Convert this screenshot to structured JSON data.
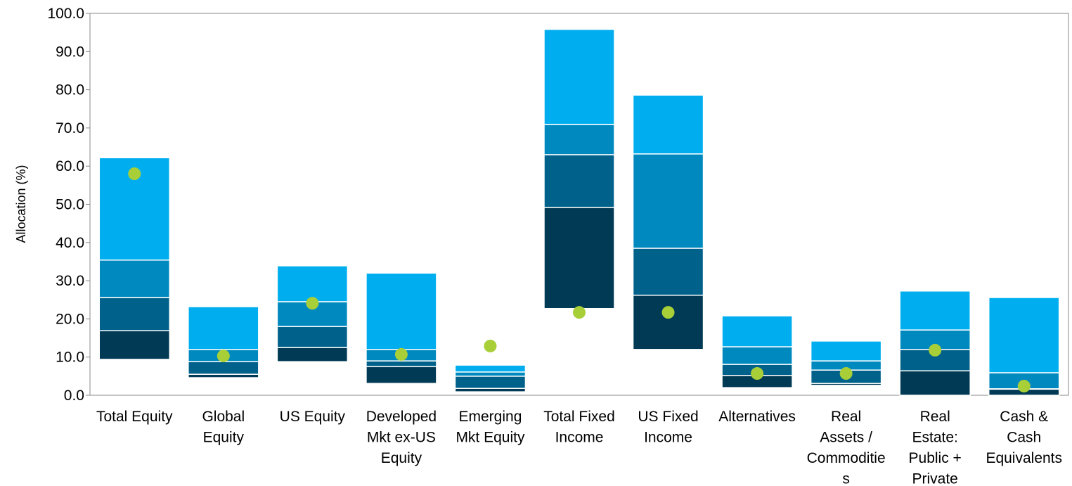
{
  "chart_data": {
    "type": "floating_range",
    "y_label": "Allocation (%)",
    "categories": [
      [
        "Total Equity"
      ],
      [
        "Global",
        "Equity"
      ],
      [
        "US Equity"
      ],
      [
        "Developed",
        "Mkt ex-US",
        "Equity"
      ],
      [
        "Emerging",
        "Mkt Equity"
      ],
      [
        "Total Fixed",
        "Income"
      ],
      [
        "US Fixed",
        "Income"
      ],
      [
        "Alternatives"
      ],
      [
        "Real",
        "Assets /",
        "Commoditie",
        "s"
      ],
      [
        "Real",
        "Estate:",
        "Public +",
        "Private"
      ],
      [
        "Cash &",
        "Cash",
        "Equivalents"
      ]
    ],
    "percentiles": [
      [
        9.4,
        4.6,
        8.8,
        3.1,
        0.9,
        22.7,
        12.0,
        2.0,
        2.6,
        0.0,
        0.0
      ],
      [
        16.9,
        5.5,
        12.5,
        7.5,
        1.8,
        49.2,
        26.2,
        5.2,
        3.1,
        6.4,
        1.6
      ],
      [
        25.6,
        8.8,
        18.0,
        9.0,
        5.0,
        63.0,
        38.5,
        8.1,
        6.6,
        12.0,
        1.7
      ],
      [
        35.4,
        12.0,
        24.5,
        12.0,
        6.1,
        70.9,
        63.2,
        12.7,
        9.0,
        17.1,
        5.9
      ],
      [
        62.2,
        23.2,
        33.9,
        32.0,
        7.9,
        95.8,
        78.6,
        20.8,
        14.2,
        27.3,
        25.6
      ]
    ],
    "segment_colors": [
      "#003a54",
      "#00618a",
      "#0089bf",
      "#00aeef"
    ],
    "points": [
      58.0,
      10.3,
      24.1,
      10.7,
      12.9,
      21.7,
      21.7,
      5.7,
      5.7,
      11.8,
      2.4
    ],
    "point_color": "#a8cf38",
    "ylim": [
      0,
      100
    ],
    "yticks": [
      {
        "value": 0,
        "label": "0.0"
      },
      {
        "value": 10,
        "label": "10.0"
      },
      {
        "value": 20,
        "label": "20.0"
      },
      {
        "value": 30,
        "label": "30.0"
      },
      {
        "value": 40,
        "label": "40.0"
      },
      {
        "value": 50,
        "label": "50.0"
      },
      {
        "value": 60,
        "label": "60.0"
      },
      {
        "value": 70,
        "label": "70.0"
      },
      {
        "value": 80,
        "label": "80.0"
      },
      {
        "value": 90,
        "label": "90.0"
      },
      {
        "value": 100,
        "label": "100.0"
      }
    ]
  }
}
